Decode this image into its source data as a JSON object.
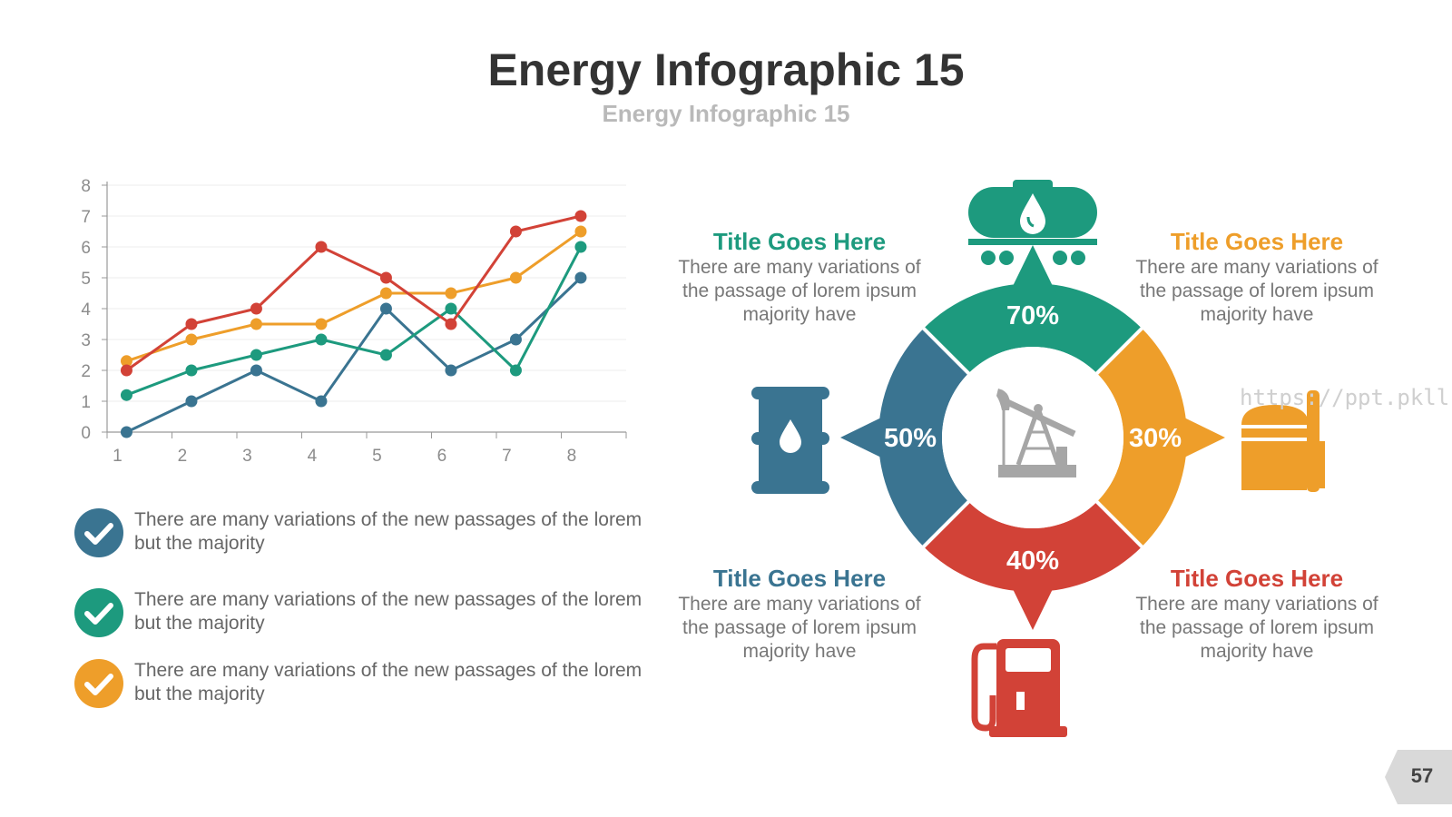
{
  "header": {
    "title": "Energy Infographic 15",
    "subtitle": "Energy Infographic 15"
  },
  "chart_data": {
    "type": "line",
    "x": [
      1,
      2,
      3,
      4,
      5,
      6,
      7,
      8
    ],
    "xlim": [
      0.7,
      8.7
    ],
    "ylim": [
      0,
      8
    ],
    "yticks": [
      0,
      1,
      2,
      3,
      4,
      5,
      6,
      7,
      8
    ],
    "xticks": [
      1,
      2,
      3,
      4,
      5,
      6,
      7,
      8
    ],
    "grid": true,
    "title": "",
    "xlabel": "",
    "ylabel": "",
    "series": [
      {
        "color": "#3a7491",
        "values": [
          0,
          1,
          2,
          1,
          4,
          2,
          3,
          5
        ]
      },
      {
        "color": "#1d9a7e",
        "values": [
          1.2,
          2,
          2.5,
          3,
          2.5,
          4,
          2,
          6
        ]
      },
      {
        "color": "#ee9e2a",
        "values": [
          2.3,
          3,
          3.5,
          3.5,
          4.5,
          4.5,
          5,
          6.5
        ]
      },
      {
        "color": "#d24237",
        "values": [
          2,
          3.5,
          4,
          6,
          5,
          3.5,
          6.5,
          7
        ]
      }
    ]
  },
  "bullets": [
    {
      "text": "There are many variations of the  new passages of the lorem but the majority",
      "color": "#3a7491"
    },
    {
      "text": "There are many variations of the  new passages of the lorem but the majority",
      "color": "#1d9a7e"
    },
    {
      "text": "There are many variations of the  new passages of the lorem but the majority",
      "color": "#ee9e2a"
    }
  ],
  "diagram": {
    "segments": [
      {
        "label": "70%",
        "color": "#1d9a7e",
        "icon": "oil-tanker-wagon-icon"
      },
      {
        "label": "30%",
        "color": "#ee9e2a",
        "icon": "oil-storage-tank-icon"
      },
      {
        "label": "40%",
        "color": "#d24237",
        "icon": "fuel-pump-icon"
      },
      {
        "label": "50%",
        "color": "#3a7491",
        "icon": "oil-barrel-icon"
      }
    ],
    "center_icon": "oil-pumpjack-icon"
  },
  "blocks": [
    {
      "title": "Title Goes Here",
      "body": "There are many variations of the passage of lorem ipsum majority have",
      "color": "#1d9a7e"
    },
    {
      "title": "Title Goes Here",
      "body": "There are many variations of the passage of lorem ipsum majority have",
      "color": "#ee9e2a"
    },
    {
      "title": "Title Goes Here",
      "body": "There are many variations of the passage of lorem ipsum majority have",
      "color": "#3a7491"
    },
    {
      "title": "Title Goes Here",
      "body": "There are many variations of the passage of lorem ipsum majority have",
      "color": "#d24237"
    }
  ],
  "watermark": "https://ppt.pkll.de",
  "page_number": "57"
}
